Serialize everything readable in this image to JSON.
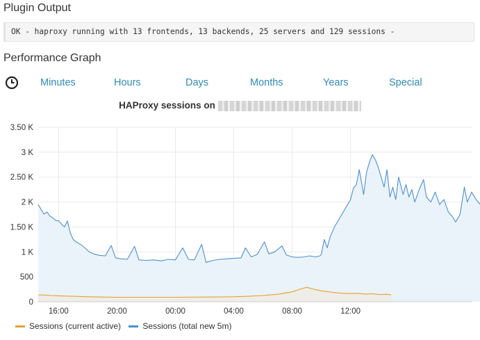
{
  "plugin_output": {
    "title": "Plugin Output",
    "text": "OK - haproxy running with 13 frontends, 13 backends, 25 servers and 129 sessions -"
  },
  "performance": {
    "title": "Performance Graph",
    "clock_icon": "clock-icon",
    "tabs": [
      "Minutes",
      "Hours",
      "Days",
      "Months",
      "Years",
      "Special"
    ],
    "accent_color": "#2f8ab8"
  },
  "chart_data": {
    "type": "line",
    "title": "HAProxy sessions on",
    "x_tick_labels": [
      "16:00",
      "20:00",
      "00:00",
      "04:00",
      "08:00",
      "12:00"
    ],
    "x_hours": [
      -1.4,
      16.1
    ],
    "x_ticks": [
      0,
      4,
      8,
      12,
      16,
      20
    ],
    "ylim": [
      0,
      3500
    ],
    "y_ticks": [
      0,
      500,
      1000,
      1500,
      2000,
      2500,
      3000,
      3500
    ],
    "y_tick_labels": [
      "0",
      "500",
      "1 K",
      "1.50 K",
      "2 K",
      "2.50 K",
      "3 K",
      "3.50 K"
    ],
    "grid": true,
    "legend_position": "bottom-left",
    "series": [
      {
        "name": "Sessions (current active)",
        "color": "#e5a02f",
        "fill": "#efece6",
        "points": [
          [
            -1.4,
            140
          ],
          [
            -1.0,
            135
          ],
          [
            -0.5,
            125
          ],
          [
            0,
            120
          ],
          [
            0.5,
            115
          ],
          [
            1,
            110
          ],
          [
            2,
            100
          ],
          [
            3,
            95
          ],
          [
            4,
            90
          ],
          [
            6,
            90
          ],
          [
            8,
            90
          ],
          [
            10,
            95
          ],
          [
            12,
            100
          ],
          [
            13,
            110
          ],
          [
            14,
            125
          ],
          [
            15,
            150
          ],
          [
            16,
            200
          ],
          [
            16.5,
            250
          ],
          [
            17,
            290
          ],
          [
            17.5,
            250
          ],
          [
            18,
            220
          ],
          [
            18.5,
            200
          ],
          [
            19,
            180
          ],
          [
            19.5,
            170
          ],
          [
            20,
            165
          ],
          [
            20.5,
            170
          ],
          [
            21,
            155
          ],
          [
            21.5,
            160
          ],
          [
            22,
            145
          ],
          [
            22.5,
            150
          ],
          [
            22.8,
            140
          ]
        ]
      },
      {
        "name": "Sessions (total new 5m)",
        "color": "#4a90d2",
        "fill": "#eaf2fa",
        "points": [
          [
            -1.4,
            1950
          ],
          [
            -1.2,
            1850
          ],
          [
            -1.0,
            1760
          ],
          [
            -0.8,
            1800
          ],
          [
            -0.6,
            1720
          ],
          [
            -0.4,
            1680
          ],
          [
            -0.2,
            1630
          ],
          [
            0.0,
            1620
          ],
          [
            0.2,
            1560
          ],
          [
            0.4,
            1500
          ],
          [
            0.6,
            1620
          ],
          [
            0.8,
            1380
          ],
          [
            1.0,
            1250
          ],
          [
            1.2,
            1200
          ],
          [
            1.5,
            1150
          ],
          [
            1.8,
            1080
          ],
          [
            2.1,
            1000
          ],
          [
            2.4,
            960
          ],
          [
            2.8,
            930
          ],
          [
            3.2,
            920
          ],
          [
            3.6,
            1130
          ],
          [
            3.9,
            880
          ],
          [
            4.3,
            860
          ],
          [
            4.7,
            850
          ],
          [
            5.2,
            1110
          ],
          [
            5.5,
            840
          ],
          [
            6,
            830
          ],
          [
            6.5,
            840
          ],
          [
            7,
            820
          ],
          [
            7.5,
            850
          ],
          [
            8,
            840
          ],
          [
            8.5,
            1080
          ],
          [
            8.9,
            850
          ],
          [
            9.3,
            840
          ],
          [
            9.8,
            1150
          ],
          [
            10.1,
            790
          ],
          [
            10.6,
            830
          ],
          [
            11,
            850
          ],
          [
            11.5,
            860
          ],
          [
            12,
            870
          ],
          [
            12.5,
            880
          ],
          [
            12.8,
            1080
          ],
          [
            13.2,
            900
          ],
          [
            13.6,
            950
          ],
          [
            14.1,
            1200
          ],
          [
            14.4,
            960
          ],
          [
            14.8,
            1000
          ],
          [
            15.3,
            1120
          ],
          [
            15.6,
            940
          ],
          [
            16.0,
            900
          ],
          [
            16.4,
            890
          ],
          [
            16.8,
            900
          ],
          [
            17.2,
            920
          ],
          [
            17.6,
            900
          ],
          [
            17.9,
            920
          ],
          [
            18.0,
            950
          ],
          [
            18.2,
            1250
          ],
          [
            18.4,
            1080
          ],
          [
            18.6,
            1300
          ],
          [
            18.9,
            1500
          ],
          [
            19.3,
            1700
          ],
          [
            19.7,
            1900
          ],
          [
            20.0,
            2050
          ],
          [
            20.2,
            2280
          ],
          [
            20.4,
            2350
          ],
          [
            20.6,
            2650
          ],
          [
            20.9,
            2150
          ],
          [
            21.1,
            2600
          ],
          [
            21.3,
            2800
          ],
          [
            21.5,
            2950
          ],
          [
            21.7,
            2850
          ],
          [
            21.9,
            2700
          ],
          [
            22.1,
            2500
          ],
          [
            22.3,
            2300
          ],
          [
            22.5,
            2650
          ],
          [
            22.7,
            2100
          ],
          [
            22.9,
            2300
          ],
          [
            23.1,
            2050
          ],
          [
            23.3,
            2500
          ],
          [
            23.6,
            2150
          ],
          [
            23.8,
            2350
          ],
          [
            24.0,
            2100
          ],
          [
            24.2,
            2250
          ],
          [
            24.4,
            2000
          ],
          [
            24.7,
            2250
          ],
          [
            25.0,
            2450
          ],
          [
            25.2,
            2100
          ],
          [
            25.5,
            2000
          ],
          [
            25.8,
            2200
          ],
          [
            26.1,
            1950
          ],
          [
            26.4,
            2050
          ],
          [
            26.7,
            1800
          ],
          [
            27.0,
            1700
          ],
          [
            27.2,
            1600
          ],
          [
            27.5,
            1750
          ],
          [
            27.8,
            2300
          ],
          [
            28.0,
            2000
          ],
          [
            28.3,
            2200
          ],
          [
            28.6,
            2050
          ],
          [
            28.9,
            1950
          ],
          [
            29.1,
            1650
          ],
          [
            29.3,
            1950
          ]
        ]
      }
    ]
  }
}
